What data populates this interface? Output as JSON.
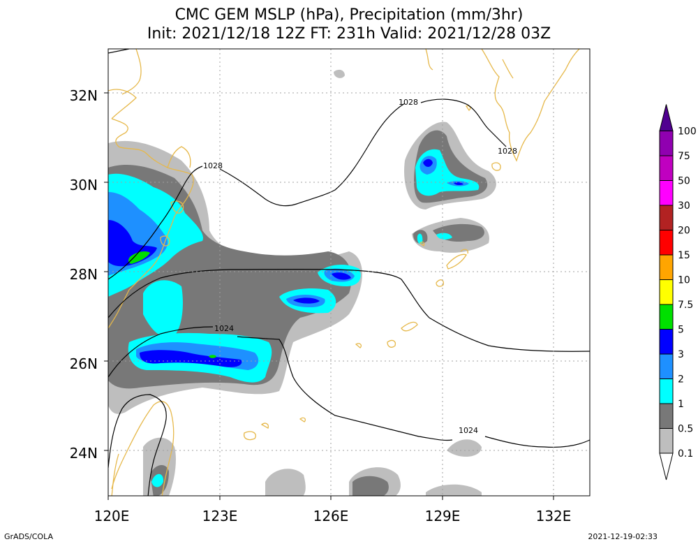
{
  "title": {
    "line1": "CMC GEM MSLP (hPa), Precipitation (mm/3hr)",
    "line2": "Init: 2021/12/18 12Z  FT: 231h  Valid: 2021/12/28 03Z"
  },
  "map": {
    "lon_range": [
      120,
      133
    ],
    "lat_range": [
      23,
      33
    ],
    "lon_ticks": [
      "120E",
      "123E",
      "126E",
      "129E",
      "132E"
    ],
    "lat_ticks": [
      "24N",
      "26N",
      "28N",
      "30N",
      "32N"
    ],
    "grid": true,
    "isobar_labels": [
      "1028",
      "1028",
      "1028",
      "1024",
      "1024"
    ]
  },
  "colorbar": {
    "labels": [
      "0.1",
      "0.5",
      "1",
      "2",
      "3",
      "5",
      "7.5",
      "10",
      "15",
      "20",
      "30",
      "50",
      "75",
      "100"
    ],
    "colors": [
      "#ffffff",
      "#bebebe",
      "#787878",
      "#00ffff",
      "#1e90ff",
      "#0000ff",
      "#00e000",
      "#ffff00",
      "#ffa500",
      "#ff0000",
      "#b22222",
      "#ff00ff",
      "#c000c0",
      "#9000b0",
      "#500090"
    ]
  },
  "footer": {
    "left": "GrADS/COLA",
    "right": "2021-12-19-02:33"
  }
}
